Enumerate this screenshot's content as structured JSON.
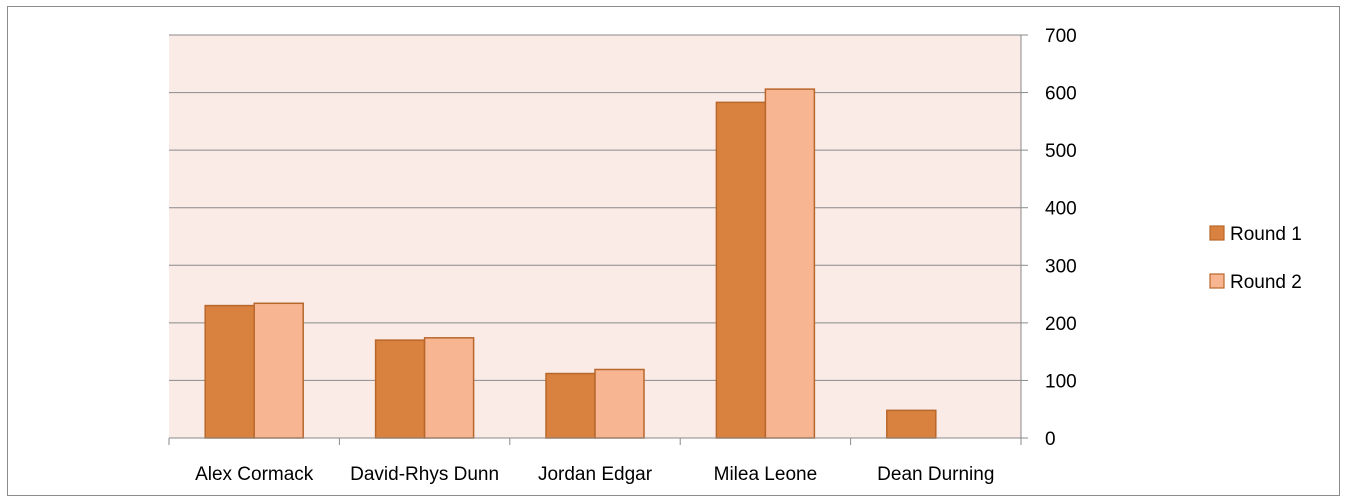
{
  "chart_data": {
    "type": "bar",
    "categories": [
      "Alex Cormack",
      "David-Rhys Dunn",
      "Jordan Edgar",
      "Milea Leone",
      "Dean Durning"
    ],
    "series": [
      {
        "name": "Round 1",
        "values": [
          230,
          170,
          112,
          583,
          48
        ],
        "color": "#d9823f"
      },
      {
        "name": "Round 2",
        "values": [
          234,
          174,
          119,
          606,
          null
        ],
        "color": "#f7b592"
      }
    ],
    "title": "",
    "xlabel": "",
    "ylabel": "",
    "ylim": [
      0,
      700
    ],
    "yticks": [
      "0",
      "100",
      "200",
      "300",
      "400",
      "500",
      "600",
      "700"
    ],
    "y_axis_side": "right",
    "grid": true,
    "legend": "right",
    "plot_background": "#fbebe6",
    "bar_border": "#b8672c"
  }
}
